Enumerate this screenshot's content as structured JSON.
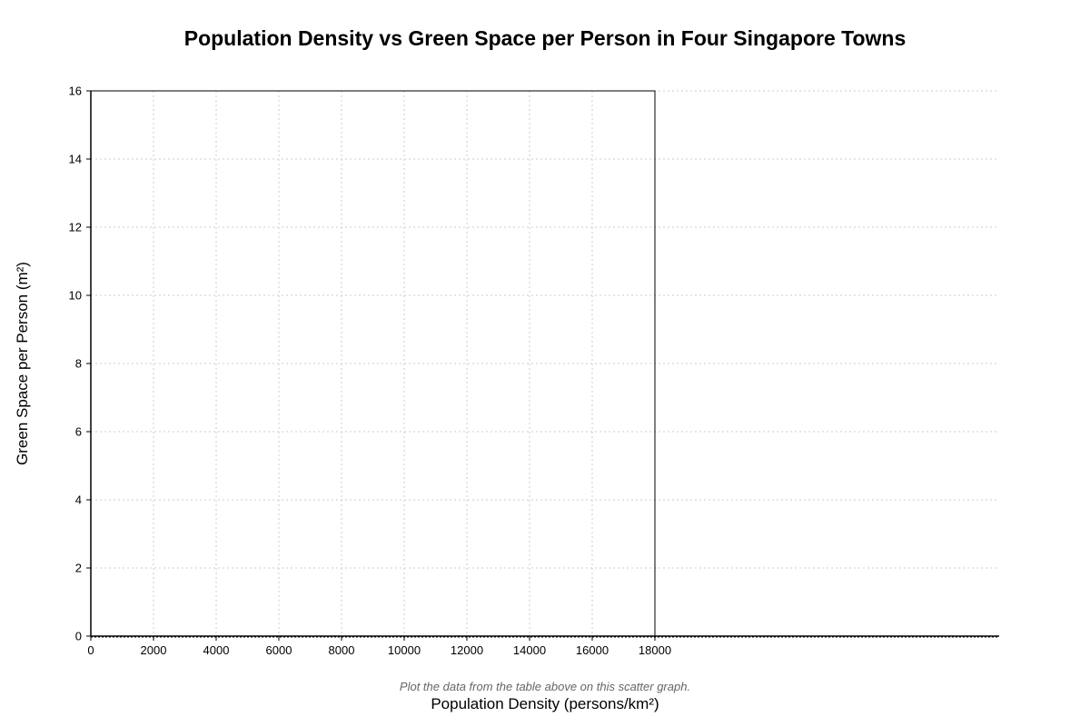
{
  "chart_data": {
    "type": "scatter",
    "title": "Population Density vs Green Space per Person in Four Singapore Towns",
    "xlabel": "Population Density (persons/km²)",
    "ylabel": "Green Space per Person (m²)",
    "xlim": [
      0,
      18000
    ],
    "ylim": [
      0,
      16
    ],
    "x_ticks": [
      "0",
      "2000",
      "4000",
      "6000",
      "8000",
      "10000",
      "12000",
      "14000",
      "16000",
      "18000"
    ],
    "y_ticks": [
      "0",
      "2",
      "4",
      "6",
      "8",
      "10",
      "12",
      "14",
      "16"
    ],
    "grid": true,
    "series": [],
    "note": "Plot the data from the table above on this scatter graph."
  }
}
